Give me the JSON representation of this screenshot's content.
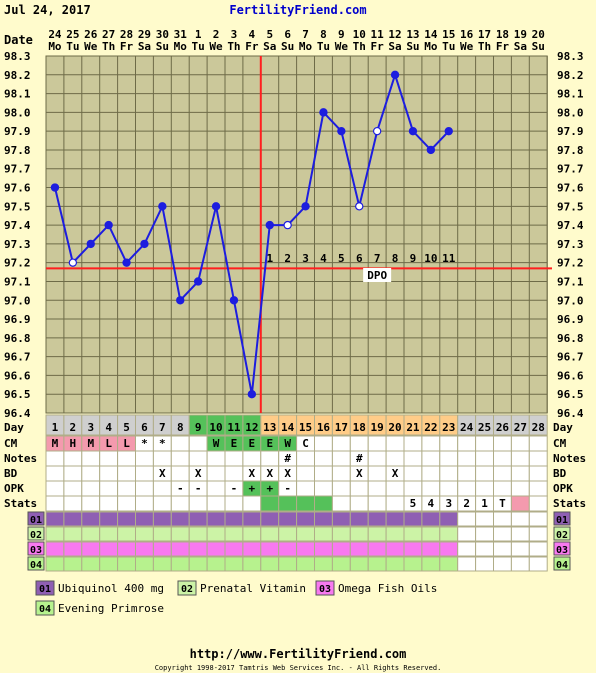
{
  "header": {
    "date": "Jul 24, 2017",
    "site": "FertilityFriend.com"
  },
  "colors": {
    "background": "#fffbcc",
    "grid_bg": "#cbc89a",
    "grid_line": "#6e6b48",
    "temp_line": "#1d1ddf",
    "coverline": "#ff1f1f",
    "ovulation": "#ff1f1f",
    "header_blue": "#0000cc",
    "day_gray": "#cfcfcf",
    "day_green": "#55c15a",
    "day_orange": "#ffcc88",
    "cm_pink": "#f49aae",
    "stats_green": "#55c15a",
    "stats_pink": "#f49aae",
    "supp1": "#8f5fb3",
    "supp2": "#ccf3a6",
    "supp3": "#f879f0",
    "supp4": "#b7f28e"
  },
  "chart_data": {
    "type": "line",
    "dates_top": [
      "24",
      "25",
      "26",
      "27",
      "28",
      "29",
      "30",
      "31",
      "1",
      "2",
      "3",
      "4",
      "5",
      "6",
      "7",
      "8",
      "9",
      "10",
      "11",
      "12",
      "13",
      "14",
      "15",
      "16",
      "17",
      "18",
      "19",
      "20"
    ],
    "weekdays": [
      "Mo",
      "Tu",
      "We",
      "Th",
      "Fr",
      "Sa",
      "Su",
      "Mo",
      "Tu",
      "We",
      "Th",
      "Fr",
      "Sa",
      "Su",
      "Mo",
      "Tu",
      "We",
      "Th",
      "Fr",
      "Sa",
      "Su",
      "Mo",
      "Tu",
      "We",
      "Th",
      "Fr",
      "Sa",
      "Su"
    ],
    "ylim": [
      96.4,
      98.3
    ],
    "y_ticks": [
      "98.3",
      "98.2",
      "98.1",
      "98.0",
      "97.9",
      "97.8",
      "97.7",
      "97.6",
      "97.5",
      "97.4",
      "97.3",
      "97.2",
      "97.1",
      "97.0",
      "96.9",
      "96.8",
      "96.7",
      "96.6",
      "96.5",
      "96.4"
    ],
    "temps": [
      97.6,
      97.2,
      97.3,
      97.4,
      97.2,
      97.3,
      97.5,
      97.0,
      97.1,
      97.5,
      97.0,
      96.5,
      97.4,
      97.4,
      97.5,
      98.0,
      97.9,
      97.5,
      97.9,
      98.2,
      97.9,
      97.8,
      97.9,
      null,
      null,
      null,
      null,
      null
    ],
    "open_points": [
      1,
      13,
      17,
      18
    ],
    "coverline": 97.17,
    "ovulation_day": 12,
    "dpo": [
      "1",
      "2",
      "3",
      "4",
      "5",
      "6",
      "7",
      "8",
      "9",
      "10",
      "11"
    ],
    "dpo_label": "DPO"
  },
  "rows": {
    "day_label": "Day",
    "cm_label": "CM",
    "notes_label": "Notes",
    "bd_label": "BD",
    "opk_label": "OPK",
    "stats_label": "Stats",
    "supp_labels": [
      "01",
      "02",
      "03",
      "04"
    ],
    "days": [
      "1",
      "2",
      "3",
      "4",
      "5",
      "6",
      "7",
      "8",
      "9",
      "10",
      "11",
      "12",
      "13",
      "14",
      "15",
      "16",
      "17",
      "18",
      "19",
      "20",
      "21",
      "22",
      "23",
      "24",
      "25",
      "26",
      "27",
      "28"
    ],
    "cm": [
      "M",
      "H",
      "M",
      "L",
      "L",
      "*",
      "*",
      "",
      "",
      "W",
      "E",
      "E",
      "E",
      "W",
      "C",
      "",
      "",
      "",
      "",
      "",
      "",
      "",
      "",
      "",
      "",
      "",
      "",
      ""
    ],
    "notes": [
      "",
      "",
      "",
      "",
      "",
      "",
      "",
      "",
      "",
      "",
      "",
      "",
      "",
      "#",
      "",
      "",
      "",
      "#",
      "",
      "",
      "",
      "",
      "",
      "",
      "",
      "",
      "",
      ""
    ],
    "bd": [
      "",
      "",
      "",
      "",
      "",
      "",
      "X",
      "",
      "X",
      "",
      "",
      "X",
      "X",
      "X",
      "",
      "",
      "",
      "X",
      "",
      "X",
      "",
      "",
      "",
      "",
      "",
      "",
      "",
      ""
    ],
    "opk": [
      "",
      "",
      "",
      "",
      "",
      "",
      "",
      "-",
      "-",
      "",
      "-",
      "+",
      "+",
      "-",
      "",
      "",
      "",
      "",
      "",
      "",
      "",
      "",
      "",
      "",
      "",
      "",
      "",
      ""
    ],
    "stats": [
      "",
      "",
      "",
      "",
      "",
      "",
      "",
      "",
      "",
      "",
      "",
      "",
      "",
      "",
      "",
      "",
      "",
      "",
      "",
      "",
      "5",
      "4",
      "3",
      "2",
      "1",
      "T",
      "",
      ""
    ]
  },
  "legend": {
    "items": [
      {
        "code": "01",
        "label": "Ubiquinol 400 mg"
      },
      {
        "code": "02",
        "label": "Prenatal Vitamin"
      },
      {
        "code": "03",
        "label": "Omega Fish Oils"
      },
      {
        "code": "04",
        "label": "Evening Primrose"
      }
    ]
  },
  "footer": {
    "url": "http://www.FertilityFriend.com",
    "copyright": "Copyright 1998-2017 Tamtris Web Services Inc. - All Rights Reserved."
  }
}
